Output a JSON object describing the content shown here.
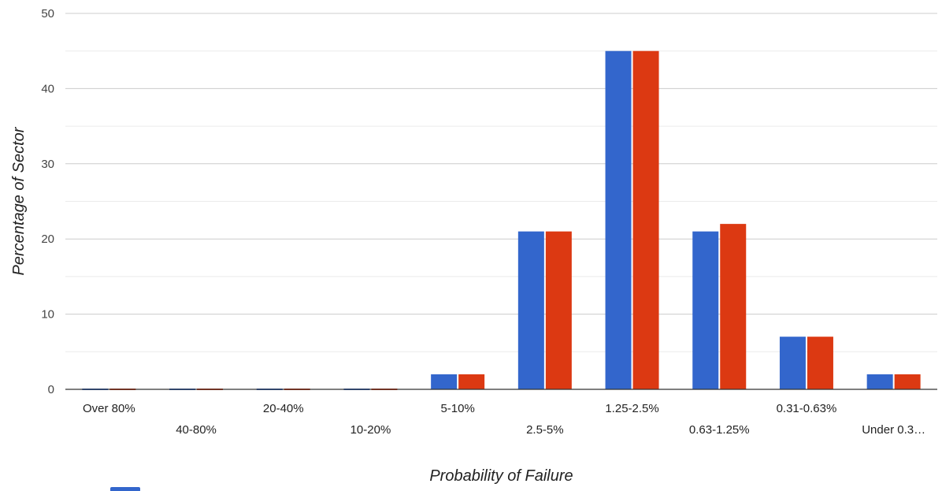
{
  "chart_data": {
    "type": "bar",
    "title": "",
    "xlabel": "Probability of Failure",
    "ylabel": "Percentage of Sector",
    "categories": [
      "Over 80%",
      "40-80%",
      "20-40%",
      "10-20%",
      "5-10%",
      "2.5-5%",
      "1.25-2.5%",
      "0.63-1.25%",
      "0.31-0.63%",
      "Under 0.3…"
    ],
    "series": [
      {
        "values": [
          0,
          0,
          0,
          0,
          2,
          21,
          45,
          21,
          7,
          2
        ],
        "color": "#3366cc"
      },
      {
        "values": [
          0,
          0,
          0,
          0,
          2,
          21,
          45,
          22,
          7,
          2
        ],
        "color": "#dc3912"
      }
    ],
    "ylim": [
      0,
      50
    ],
    "yticks": [
      0,
      10,
      20,
      30,
      40,
      50
    ],
    "grid": true,
    "legend": "bottom-left, partially visible"
  }
}
